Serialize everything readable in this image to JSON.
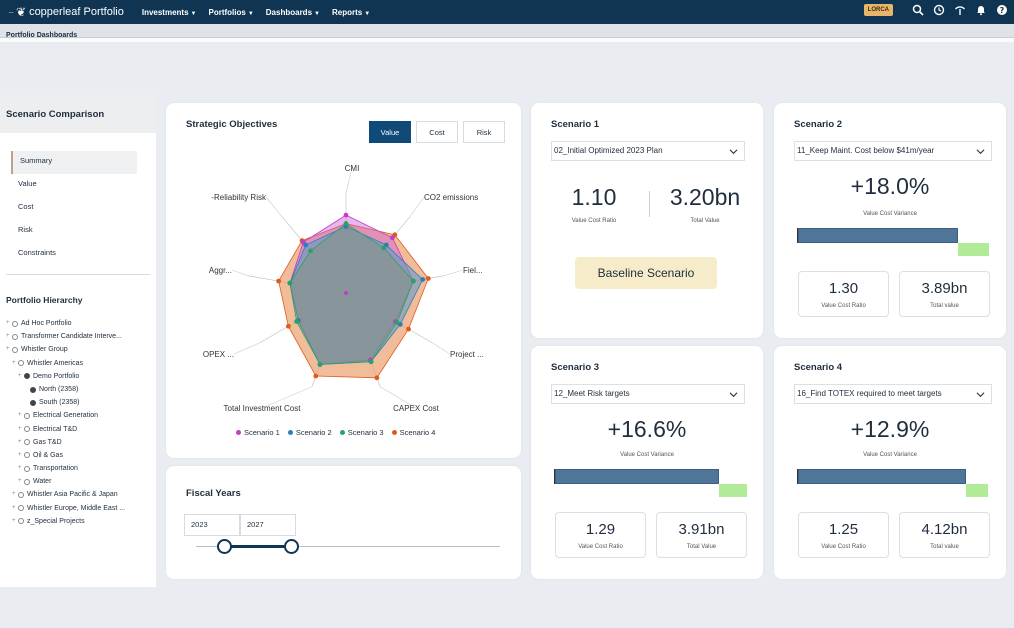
{
  "app": {
    "logo_text": "copperleaf Portfolio",
    "nav": [
      "Investments",
      "Portfolios",
      "Dashboards",
      "Reports"
    ],
    "env_badge": "LORCA",
    "breadcrumb": "Portfolio Dashboards"
  },
  "sidebar": {
    "title": "Scenario Comparison",
    "menu": [
      "Summary",
      "Value",
      "Cost",
      "Risk",
      "Constraints"
    ],
    "active_menu": "Summary",
    "hierarchy_title": "Portfolio Hierarchy",
    "tree": [
      {
        "label": "Ad Hoc Portfolio",
        "level": 0
      },
      {
        "label": "Transformer Candidate Interve...",
        "level": 0
      },
      {
        "label": "Whistler Group",
        "level": 0
      },
      {
        "label": "Whistler Americas",
        "level": 1
      },
      {
        "label": "Demo Portfolio",
        "level": 2
      },
      {
        "label": "North (2358)",
        "level": 3
      },
      {
        "label": "South (2358)",
        "level": 3
      },
      {
        "label": "Electrical Generation",
        "level": 2
      },
      {
        "label": "Electrical T&D",
        "level": 2
      },
      {
        "label": "Gas T&D",
        "level": 2
      },
      {
        "label": "Oil & Gas",
        "level": 2
      },
      {
        "label": "Transportation",
        "level": 2
      },
      {
        "label": "Water",
        "level": 2
      },
      {
        "label": "Whistler Asia Pacific & Japan",
        "level": 1
      },
      {
        "label": "Whistler Europe, Middle East ...",
        "level": 1
      },
      {
        "label": "z_Special Projects",
        "level": 1
      }
    ]
  },
  "strategic": {
    "title": "Strategic Objectives",
    "toggles": [
      "Value",
      "Cost",
      "Risk"
    ],
    "active_toggle": "Value"
  },
  "chart_data": {
    "type": "radar",
    "title": "Strategic Objectives",
    "categories": [
      "CMI",
      "CO2 emissions",
      "Fiel...",
      "Project ...",
      "CAPEX Cost",
      "Total Investment Cost",
      "OPEX ...",
      "Aggr...",
      "-Reliability Risk"
    ],
    "range": [
      0,
      1
    ],
    "legend_position": "bottom",
    "series": [
      {
        "name": "Scenario 1",
        "color": "#c23bc9",
        "values": [
          0.82,
          0.76,
          0.72,
          0.6,
          0.75,
          0.8,
          0.58,
          0.6,
          0.7
        ]
      },
      {
        "name": "Scenario 2",
        "color": "#2980b9",
        "values": [
          0.7,
          0.66,
          0.82,
          0.66,
          0.77,
          0.8,
          0.58,
          0.6,
          0.66
        ]
      },
      {
        "name": "Scenario 3",
        "color": "#27a36a",
        "values": [
          0.73,
          0.62,
          0.72,
          0.62,
          0.77,
          0.8,
          0.6,
          0.6,
          0.58
        ]
      },
      {
        "name": "Scenario 4",
        "color": "#e05a1c",
        "values": [
          0.73,
          0.8,
          0.88,
          0.76,
          0.95,
          0.93,
          0.7,
          0.72,
          0.72
        ]
      }
    ]
  },
  "fiscal": {
    "title": "Fiscal Years",
    "start": "2023",
    "end": "2027"
  },
  "scenario1": {
    "title": "Scenario 1",
    "dropdown": "02_Initial Optimized 2023 Plan",
    "vcr": "1.10",
    "vcr_label": "Value Cost Ratio",
    "total": "3.20bn",
    "total_label": "Total Value",
    "button": "Baseline Scenario"
  },
  "scenario2": {
    "title": "Scenario 2",
    "dropdown": "11_Keep Maint. Cost below $41m/year",
    "variance": "+18.0%",
    "variance_label": "Value Cost Variance",
    "bar_pct": 18.0,
    "vcr": "1.30",
    "vcr_label": "Value Cost Ratio",
    "total": "3.89bn",
    "total_label": "Total value"
  },
  "scenario3": {
    "title": "Scenario 3",
    "dropdown": "12_Meet Risk targets",
    "variance": "+16.6%",
    "variance_label": "Value Cost Variance",
    "bar_pct": 16.6,
    "vcr": "1.29",
    "vcr_label": "Value Cost Ratio",
    "total": "3.91bn",
    "total_label": "Total Value"
  },
  "scenario4": {
    "title": "Scenario 4",
    "dropdown": "16_Find TOTEX required to meet targets",
    "variance": "+12.9%",
    "variance_label": "Value Cost Variance",
    "bar_pct": 12.9,
    "vcr": "1.25",
    "vcr_label": "Value Cost Ratio",
    "total": "4.12bn",
    "total_label": "Total value"
  }
}
